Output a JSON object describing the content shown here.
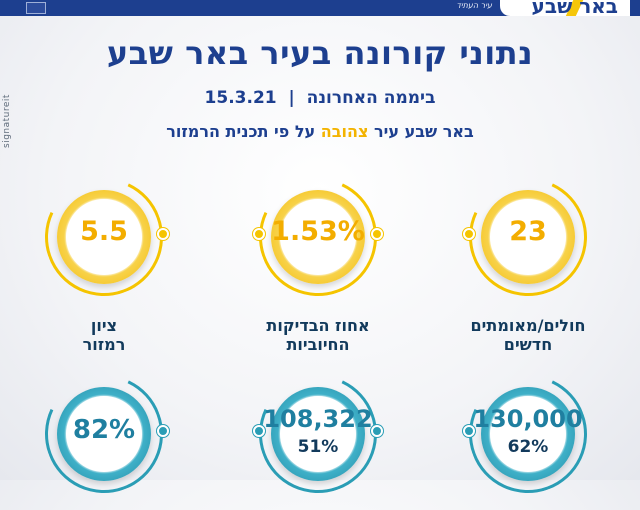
{
  "header": {
    "logo": "באר שבע",
    "tagline": "עיר העתיד"
  },
  "side_brand": "signatureit",
  "title": "נתוני קורונה בעיר באר שבע",
  "subtitle": {
    "period": "ביממה האחרונה",
    "separator": "|",
    "date": "15.3.21"
  },
  "status_line": {
    "prefix": "באר שבע עיר",
    "color_word": "צהובה",
    "suffix": "על פי תכנית הרמזור"
  },
  "top_stats": [
    {
      "value": "23",
      "label_line1": "חולים/מאומתים",
      "label_line2": "חדשים"
    },
    {
      "value": "1.53%",
      "label_line1": "אחוז הבדיקות",
      "label_line2": "החיוביות"
    },
    {
      "value": "5.5",
      "label_line1": "ציון",
      "label_line2": "רמזור"
    }
  ],
  "bottom_stats": [
    {
      "value": "130,000",
      "pct": "62%"
    },
    {
      "value": "108,322",
      "pct": "51%"
    },
    {
      "value": "82%",
      "pct": ""
    }
  ],
  "colors": {
    "brand_blue": "#1d3f8f",
    "yellow": "#f5c400",
    "teal": "#2a9db5"
  }
}
